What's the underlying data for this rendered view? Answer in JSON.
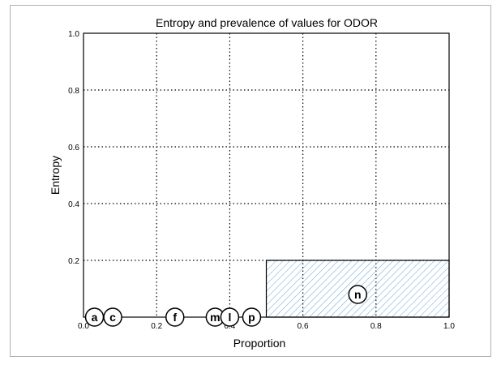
{
  "chart_data": {
    "type": "scatter",
    "title": "Entropy and prevalence of values for ODOR",
    "xlabel": "Proportion",
    "ylabel": "Entropy",
    "xlim": [
      0,
      1
    ],
    "ylim": [
      0,
      1
    ],
    "xticks": [
      "0.0",
      "0.2",
      "0.4",
      "0.6",
      "0.8",
      "1.0"
    ],
    "yticks": [
      "0.2",
      "0.4",
      "0.6",
      "0.8",
      "1.0"
    ],
    "grid": true,
    "grid_values": [
      0.2,
      0.4,
      0.6,
      0.8
    ],
    "points": [
      {
        "label": "a",
        "x": 0.03,
        "y": 0.0
      },
      {
        "label": "c",
        "x": 0.08,
        "y": 0.0
      },
      {
        "label": "f",
        "x": 0.25,
        "y": 0.0
      },
      {
        "label": "m",
        "x": 0.36,
        "y": 0.0
      },
      {
        "label": "l",
        "x": 0.4,
        "y": 0.0
      },
      {
        "label": "p",
        "x": 0.46,
        "y": 0.0
      },
      {
        "label": "n",
        "x": 0.75,
        "y": 0.08
      }
    ],
    "region": {
      "x0": 0.5,
      "x1": 1.0,
      "y0": 0.0,
      "y1": 0.2,
      "fill": "hatched",
      "color": "#6aa6d8"
    }
  }
}
